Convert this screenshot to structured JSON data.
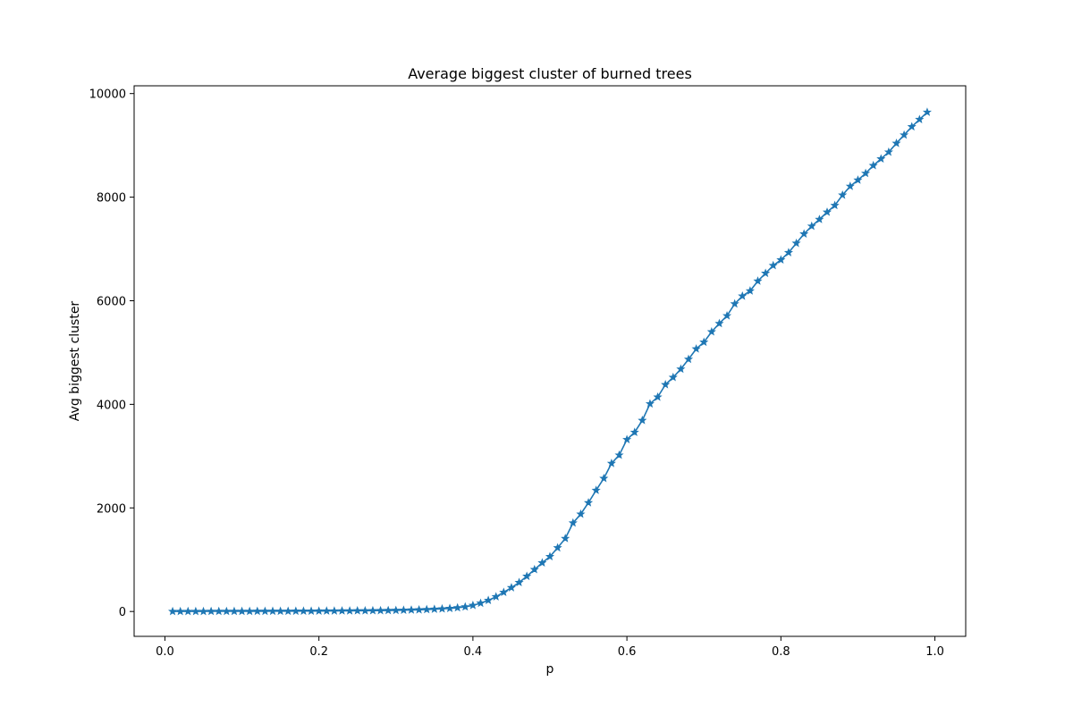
{
  "chart_data": {
    "type": "line",
    "title": "Average biggest cluster of burned trees",
    "xlabel": "p",
    "ylabel": "Avg biggest cluster",
    "xlim": [
      -0.04,
      1.04
    ],
    "ylim": [
      -480,
      10150
    ],
    "xticks": [
      0.0,
      0.2,
      0.4,
      0.6,
      0.8,
      1.0
    ],
    "xtick_labels": [
      "0.0",
      "0.2",
      "0.4",
      "0.6",
      "0.8",
      "1.0"
    ],
    "yticks": [
      0,
      2000,
      4000,
      6000,
      8000,
      10000
    ],
    "ytick_labels": [
      "0",
      "2000",
      "4000",
      "6000",
      "8000",
      "10000"
    ],
    "grid": false,
    "marker": "star",
    "series": [
      {
        "color": "#1f77b4",
        "x": [
          0.01,
          0.02,
          0.03,
          0.04,
          0.05,
          0.06,
          0.07,
          0.08,
          0.09,
          0.1,
          0.11,
          0.12,
          0.13,
          0.14,
          0.15,
          0.16,
          0.17,
          0.18,
          0.19,
          0.2,
          0.21,
          0.22,
          0.23,
          0.24,
          0.25,
          0.26,
          0.27,
          0.28,
          0.29,
          0.3,
          0.31,
          0.32,
          0.33,
          0.34,
          0.35,
          0.36,
          0.37,
          0.38,
          0.39,
          0.4,
          0.41,
          0.42,
          0.43,
          0.44,
          0.45,
          0.46,
          0.47,
          0.48,
          0.49,
          0.5,
          0.51,
          0.52,
          0.53,
          0.54,
          0.55,
          0.56,
          0.57,
          0.58,
          0.59,
          0.6,
          0.61,
          0.62,
          0.63,
          0.64,
          0.65,
          0.66,
          0.67,
          0.68,
          0.69,
          0.7,
          0.71,
          0.72,
          0.73,
          0.74,
          0.75,
          0.76,
          0.77,
          0.78,
          0.79,
          0.8,
          0.81,
          0.82,
          0.83,
          0.84,
          0.85,
          0.86,
          0.87,
          0.88,
          0.89,
          0.9,
          0.91,
          0.92,
          0.93,
          0.94,
          0.95,
          0.96,
          0.97,
          0.98,
          0.99
        ],
        "y": [
          1,
          1,
          2,
          2,
          2,
          3,
          3,
          3,
          4,
          4,
          4,
          5,
          5,
          6,
          6,
          6,
          7,
          8,
          8,
          9,
          10,
          11,
          12,
          13,
          14,
          15,
          17,
          18,
          20,
          22,
          25,
          29,
          33,
          38,
          44,
          51,
          60,
          72,
          90,
          118,
          160,
          215,
          285,
          370,
          460,
          560,
          680,
          810,
          940,
          1060,
          1230,
          1410,
          1710,
          1880,
          2100,
          2340,
          2570,
          2860,
          3020,
          3320,
          3460,
          3690,
          4010,
          4140,
          4380,
          4520,
          4680,
          4870,
          5070,
          5200,
          5400,
          5560,
          5710,
          5940,
          6090,
          6190,
          6380,
          6530,
          6680,
          6790,
          6930,
          7110,
          7290,
          7440,
          7570,
          7710,
          7840,
          8040,
          8210,
          8330,
          8460,
          8610,
          8740,
          8870,
          9040,
          9200,
          9360,
          9500,
          9640
        ]
      }
    ]
  }
}
